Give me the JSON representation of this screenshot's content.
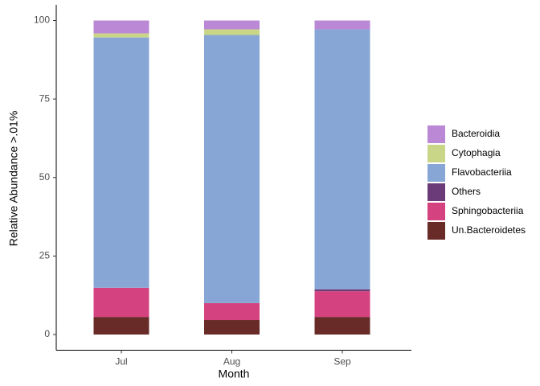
{
  "chart_data": {
    "type": "stacked_bar",
    "x_label": "Month",
    "y_label": "Relative Abundance >.01%",
    "categories": [
      "Jul",
      "Aug",
      "Sep"
    ],
    "series": [
      {
        "name": "Bacteroidia",
        "color": "#bb88d6",
        "values": [
          4.1,
          2.8,
          2.8
        ]
      },
      {
        "name": "Cytophagia",
        "color": "#c9d687",
        "values": [
          1.3,
          1.8,
          0
        ]
      },
      {
        "name": "Flavobacteriia",
        "color": "#88a6d5",
        "values": [
          79.7,
          85.4,
          82.8
        ]
      },
      {
        "name": "Others",
        "color": "#6b3a78",
        "values": [
          0,
          0,
          0.6
        ]
      },
      {
        "name": "Sphingobacteriia",
        "color": "#d44380",
        "values": [
          9.3,
          5.4,
          8.2
        ]
      },
      {
        "name": "Un.Bacteroidetes",
        "color": "#692b28",
        "values": [
          5.6,
          4.6,
          5.6
        ]
      }
    ],
    "ylim": [
      -5,
      105
    ],
    "yticks": [
      0,
      25,
      50,
      75,
      100
    ]
  }
}
